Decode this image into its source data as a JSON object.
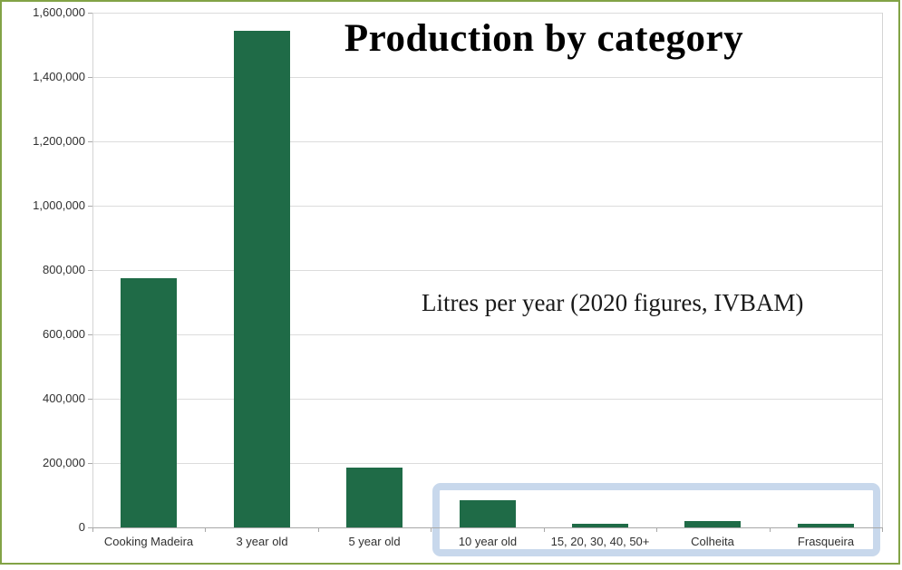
{
  "chart_data": {
    "type": "bar",
    "title": "Production by category",
    "annotation": "Litres per year (2020 figures, IVBAM)",
    "categories": [
      "Cooking Madeira",
      "3 year old",
      "5 year old",
      "10 year old",
      "15, 20, 30, 40, 50+",
      "Colheita",
      "Frasqueira"
    ],
    "values": [
      775000,
      1545000,
      185000,
      85000,
      10000,
      20000,
      11000
    ],
    "xlabel": "",
    "ylabel": "",
    "ylim": [
      0,
      1600000
    ],
    "ytick_interval": 200000,
    "ytick_labels": [
      "0",
      "200,000",
      "400,000",
      "600,000",
      "800,000",
      "1,000,000",
      "1,200,000",
      "1,400,000",
      "1,600,000"
    ],
    "grid": true,
    "legend_position": "none",
    "highlight_box": {
      "start_category": "10 year old",
      "end_category": "Frasqueira",
      "color": "#c8d8ec"
    }
  },
  "colors": {
    "bar": "#1f6b47",
    "frame_border": "#82a346",
    "gridline": "#dcdcdc",
    "axis": "#a8a8a8",
    "axis_text": "#303030",
    "title_text": "#000000",
    "highlight": "#c8d8ec"
  }
}
